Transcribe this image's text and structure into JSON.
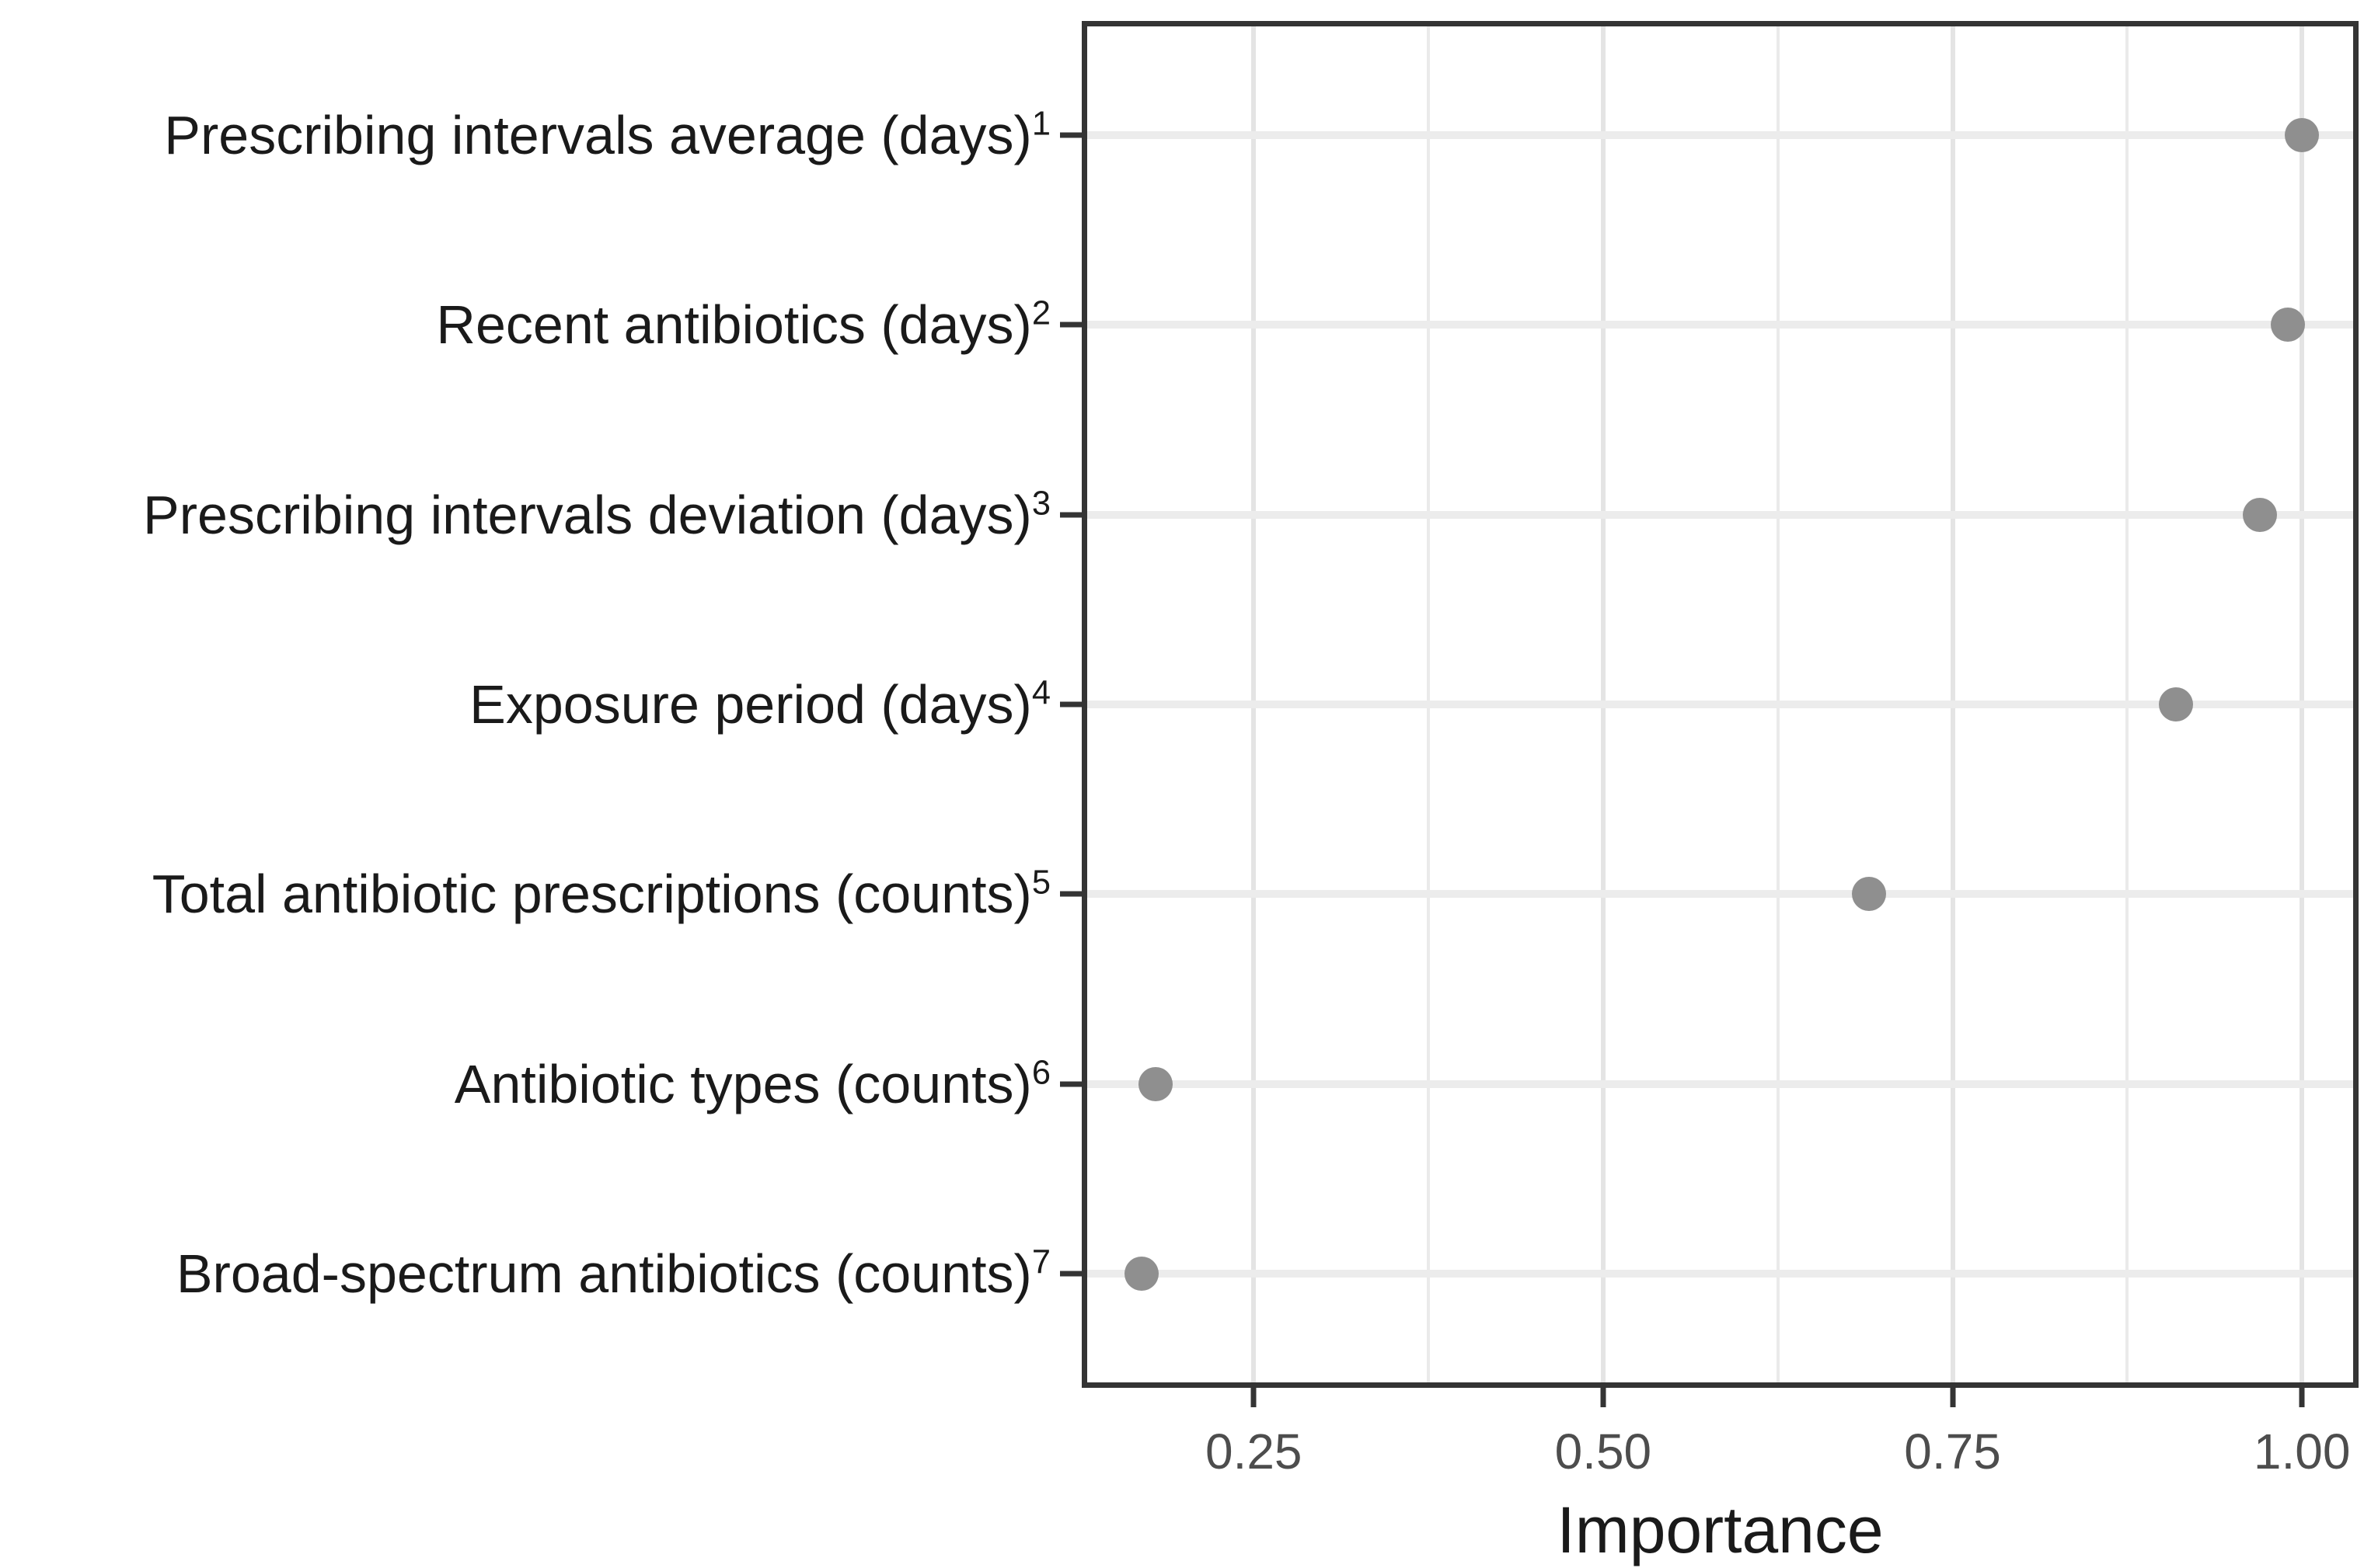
{
  "chart_data": {
    "type": "scatter",
    "subtype": "dot-plot",
    "orientation": "horizontal",
    "title": "",
    "xlabel": "Importance",
    "ylabel": "",
    "xlim": [
      0.127,
      1.0405
    ],
    "x_major_ticks": [
      {
        "value": 0.25,
        "label": "0.25"
      },
      {
        "value": 0.5,
        "label": "0.50"
      },
      {
        "value": 0.75,
        "label": "0.75"
      },
      {
        "value": 1.0,
        "label": "1.00"
      }
    ],
    "x_minor_ticks": [
      0.375,
      0.625,
      0.875
    ],
    "grid": "on",
    "legend": "none",
    "categories": [
      {
        "label": "Prescribing intervals average (days)",
        "superscript": "1",
        "value": 1.0
      },
      {
        "label": "Recent antibiotics (days)",
        "superscript": "2",
        "value": 0.99
      },
      {
        "label": "Prescribing intervals deviation (days)",
        "superscript": "3",
        "value": 0.97
      },
      {
        "label": "Exposure period (days)",
        "superscript": "4",
        "value": 0.91
      },
      {
        "label": "Total antibiotic prescriptions (counts)",
        "superscript": "5",
        "value": 0.69
      },
      {
        "label": "Antibiotic types (counts)",
        "superscript": "6",
        "value": 0.18
      },
      {
        "label": "Broad-spectrum antibiotics (counts)",
        "superscript": "7",
        "value": 0.17
      }
    ],
    "colors": {
      "point": "#8f8f8f",
      "grid_major_h": "#ececec",
      "grid_major_v": "#e4e4e4",
      "grid_minor_v": "#eaeaea",
      "panel_border": "#343434",
      "tick_mark": "#343434",
      "tick_label": "#4d4d4d",
      "category_label": "#1a1a1a",
      "axis_title": "#1a1a1a",
      "background": "#ffffff"
    }
  }
}
